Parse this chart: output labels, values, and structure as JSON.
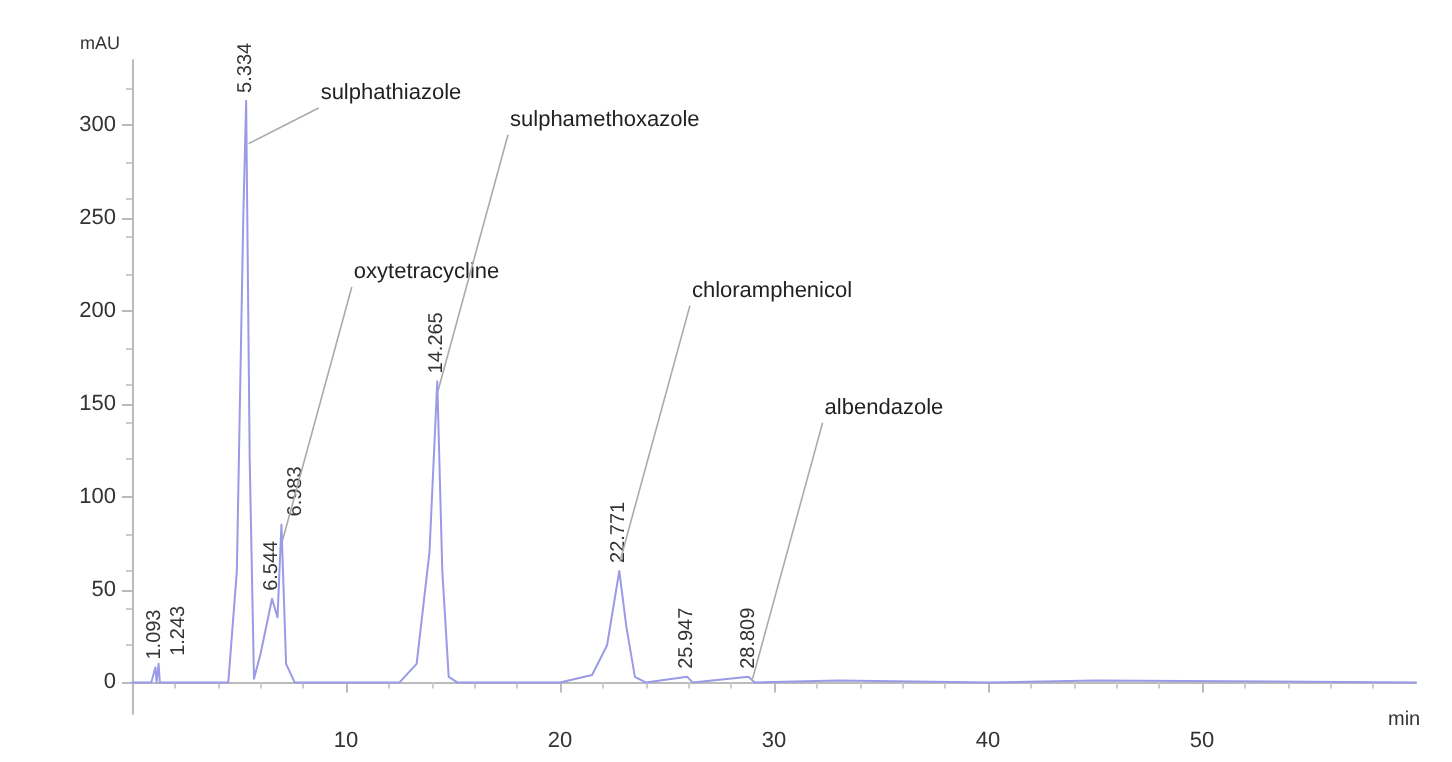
{
  "chart_data": {
    "type": "line",
    "xlabel": "min",
    "ylabel": "mAU",
    "xlim": [
      0,
      60
    ],
    "xticks": [
      10,
      20,
      30,
      40,
      50
    ],
    "ylim": [
      -17,
      335
    ],
    "yticks": [
      0,
      50,
      100,
      150,
      200,
      250,
      300
    ],
    "grid": false,
    "marker": "none",
    "line_style": "solid",
    "series": [
      {
        "color": "#9a9ae6",
        "x": [
          0,
          0.9,
          1.093,
          1.15,
          1.243,
          1.3,
          4.5,
          4.9,
          5.2,
          5.334,
          5.5,
          5.7,
          6.0,
          6.544,
          6.8,
          6.983,
          7.2,
          7.6,
          12.5,
          13.3,
          13.9,
          14.265,
          14.5,
          14.8,
          15.2,
          20,
          21.5,
          22.2,
          22.771,
          23.1,
          23.5,
          24,
          25.947,
          26.2,
          28.809,
          29.1,
          33,
          40,
          45,
          60
        ],
        "values": [
          0,
          0,
          8,
          0,
          10,
          0,
          0,
          60,
          250,
          313,
          120,
          2,
          15,
          45,
          35,
          85,
          10,
          0,
          0,
          10,
          70,
          162,
          60,
          3,
          0,
          0,
          4,
          20,
          60,
          30,
          3,
          0,
          3,
          0,
          3,
          0,
          1,
          0,
          1,
          0
        ]
      }
    ],
    "annotations": [
      {
        "text": "1.093",
        "x": 1.093,
        "y": 8
      },
      {
        "text": "1.243",
        "x": 1.243,
        "y": 10
      },
      {
        "text": "5.334",
        "x": 5.334,
        "y": 313
      },
      {
        "text": "6.544",
        "x": 6.544,
        "y": 45
      },
      {
        "text": "6.983",
        "x": 6.983,
        "y": 85
      },
      {
        "text": "14.265",
        "x": 14.265,
        "y": 162
      },
      {
        "text": "22.771",
        "x": 22.771,
        "y": 60
      },
      {
        "text": "25.947",
        "x": 25.947,
        "y": 3
      },
      {
        "text": "28.809",
        "x": 28.809,
        "y": 3
      },
      {
        "text": "sulphathiazole",
        "x": 5.45,
        "y": 290
      },
      {
        "text": "oxytetracycline",
        "x": 7.0,
        "y": 75
      },
      {
        "text": "sulphamethoxazole",
        "x": 14.3,
        "y": 157
      },
      {
        "text": "chloramphenicol",
        "x": 22.8,
        "y": 65
      },
      {
        "text": "albendazole",
        "x": 29,
        "y": 2
      }
    ]
  }
}
